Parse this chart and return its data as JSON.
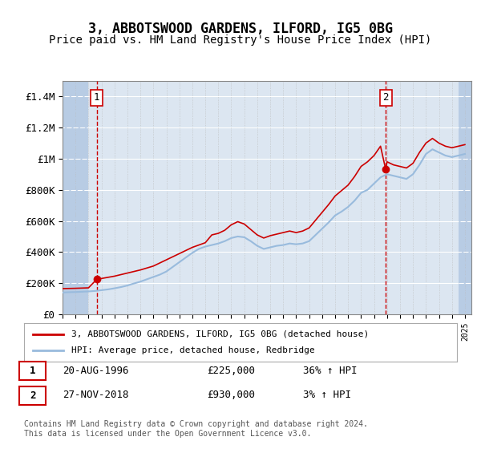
{
  "title": "3, ABBOTSWOOD GARDENS, ILFORD, IG5 0BG",
  "subtitle": "Price paid vs. HM Land Registry's House Price Index (HPI)",
  "title_fontsize": 12,
  "subtitle_fontsize": 10,
  "legend_line1": "3, ABBOTSWOOD GARDENS, ILFORD, IG5 0BG (detached house)",
  "legend_line2": "HPI: Average price, detached house, Redbridge",
  "annotation1_label": "1",
  "annotation1_date": "20-AUG-1996",
  "annotation1_price": "£225,000",
  "annotation1_hpi": "36% ↑ HPI",
  "annotation2_label": "2",
  "annotation2_date": "27-NOV-2018",
  "annotation2_price": "£930,000",
  "annotation2_hpi": "3% ↑ HPI",
  "footer": "Contains HM Land Registry data © Crown copyright and database right 2024.\nThis data is licensed under the Open Government Licence v3.0.",
  "ylim": [
    0,
    1500000
  ],
  "yticks": [
    0,
    200000,
    400000,
    600000,
    800000,
    1000000,
    1200000,
    1400000
  ],
  "ytick_labels": [
    "£0",
    "£200K",
    "£400K",
    "£600K",
    "£800K",
    "£1M",
    "£1.2M",
    "£1.4M"
  ],
  "xmin": 1994.0,
  "xmax": 2025.5,
  "plot_bg_color": "#dce6f1",
  "hatch_color": "#b8cce4",
  "grid_color": "#ffffff",
  "red_color": "#cc0000",
  "blue_color": "#99bbdd",
  "transaction1_x": 1996.64,
  "transaction1_y": 225000,
  "transaction2_x": 2018.9,
  "transaction2_y": 930000,
  "hpi_x": [
    1994.0,
    1994.5,
    1995.0,
    1995.5,
    1996.0,
    1996.5,
    1997.0,
    1997.5,
    1998.0,
    1998.5,
    1999.0,
    1999.5,
    2000.0,
    2000.5,
    2001.0,
    2001.5,
    2002.0,
    2002.5,
    2003.0,
    2003.5,
    2004.0,
    2004.5,
    2005.0,
    2005.5,
    2006.0,
    2006.5,
    2007.0,
    2007.5,
    2008.0,
    2008.5,
    2009.0,
    2009.5,
    2010.0,
    2010.5,
    2011.0,
    2011.5,
    2012.0,
    2012.5,
    2013.0,
    2013.5,
    2014.0,
    2014.5,
    2015.0,
    2015.5,
    2016.0,
    2016.5,
    2017.0,
    2017.5,
    2018.0,
    2018.5,
    2019.0,
    2019.5,
    2020.0,
    2020.5,
    2021.0,
    2021.5,
    2022.0,
    2022.5,
    2023.0,
    2023.5,
    2024.0,
    2024.5,
    2025.0
  ],
  "hpi_y": [
    140000,
    142000,
    143000,
    145000,
    147000,
    150000,
    155000,
    160000,
    167000,
    175000,
    185000,
    198000,
    210000,
    225000,
    240000,
    255000,
    275000,
    305000,
    335000,
    365000,
    395000,
    420000,
    435000,
    445000,
    455000,
    470000,
    490000,
    500000,
    495000,
    470000,
    440000,
    420000,
    430000,
    440000,
    445000,
    455000,
    450000,
    455000,
    470000,
    510000,
    550000,
    590000,
    635000,
    660000,
    690000,
    730000,
    780000,
    800000,
    840000,
    880000,
    900000,
    890000,
    880000,
    870000,
    900000,
    960000,
    1030000,
    1060000,
    1040000,
    1020000,
    1010000,
    1020000,
    1030000
  ],
  "red_x": [
    1994.0,
    1995.0,
    1996.0,
    1996.64,
    1997.0,
    1998.0,
    1999.0,
    2000.0,
    2001.0,
    2002.0,
    2003.0,
    2004.0,
    2005.0,
    2005.5,
    2006.0,
    2006.5,
    2007.0,
    2007.5,
    2008.0,
    2008.5,
    2009.0,
    2009.5,
    2010.0,
    2010.5,
    2011.0,
    2011.5,
    2012.0,
    2012.5,
    2013.0,
    2013.5,
    2014.0,
    2014.5,
    2015.0,
    2015.5,
    2016.0,
    2016.5,
    2017.0,
    2017.5,
    2018.0,
    2018.5,
    2018.9,
    2019.0,
    2019.5,
    2020.0,
    2020.5,
    2021.0,
    2021.5,
    2022.0,
    2022.5,
    2023.0,
    2023.5,
    2024.0,
    2024.5,
    2025.0
  ],
  "red_y": [
    165000,
    167000,
    170000,
    225000,
    230000,
    245000,
    265000,
    285000,
    310000,
    350000,
    390000,
    430000,
    460000,
    510000,
    520000,
    540000,
    575000,
    595000,
    580000,
    545000,
    510000,
    490000,
    505000,
    515000,
    525000,
    535000,
    525000,
    535000,
    555000,
    605000,
    655000,
    705000,
    760000,
    795000,
    830000,
    885000,
    950000,
    980000,
    1020000,
    1080000,
    930000,
    980000,
    960000,
    950000,
    940000,
    970000,
    1040000,
    1100000,
    1130000,
    1100000,
    1080000,
    1070000,
    1080000,
    1090000
  ]
}
